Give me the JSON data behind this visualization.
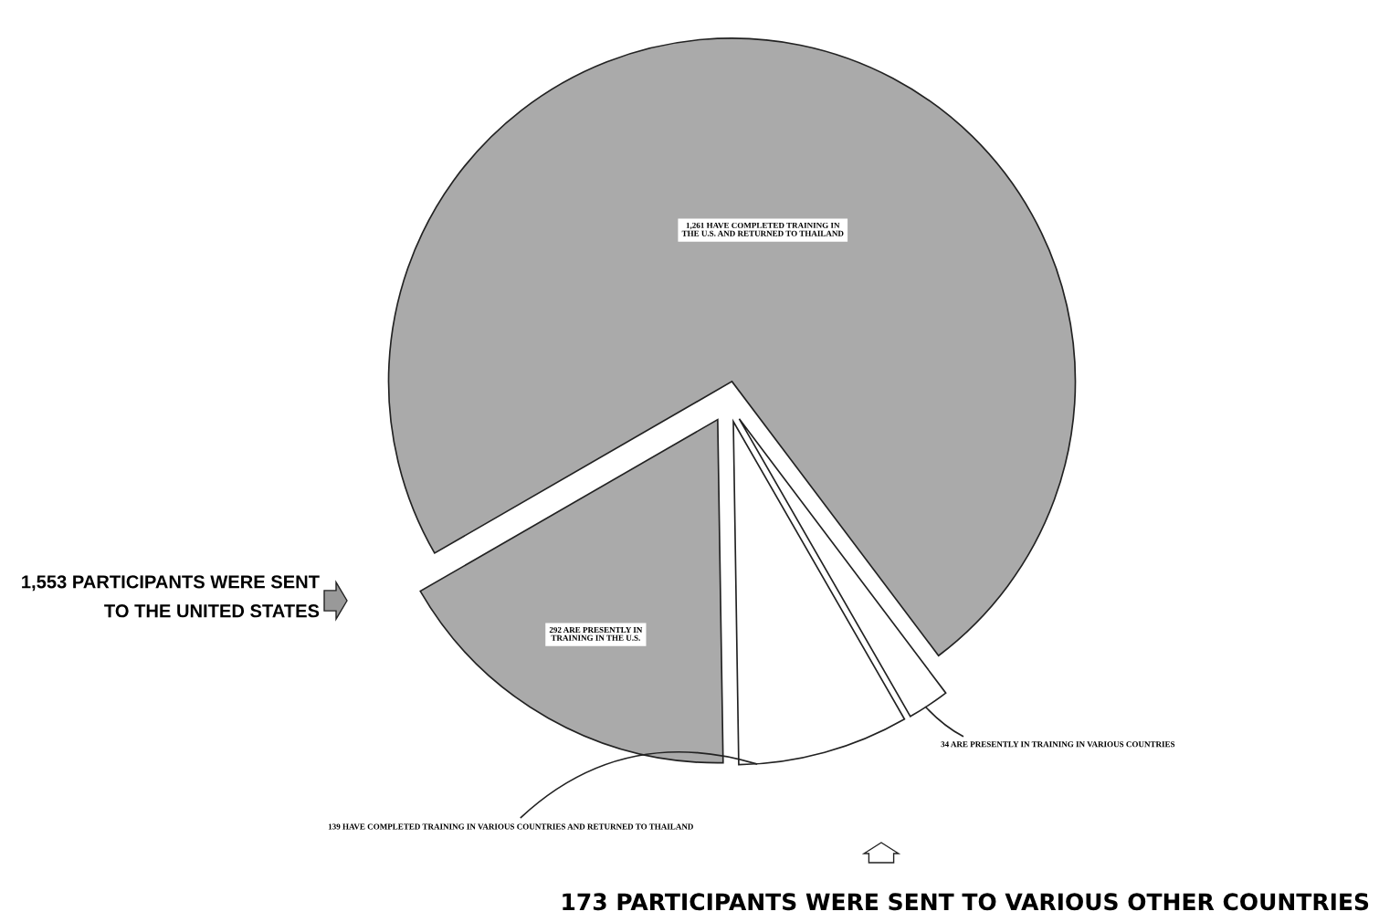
{
  "chart_data": {
    "type": "pie",
    "categories": [
      "1,261 HAVE COMPLETED TRAINING IN\nTHE U.S. AND RETURNED TO THAILAND",
      "34 ARE PRESENTLY IN TRAINING IN VARIOUS COUNTRIES",
      "139 HAVE COMPLETED TRAINING IN VARIOUS COUNTRIES AND RETURNED TO THAILAND",
      "292 ARE PRESENTLY IN\nTRAINING IN THE U.S."
    ],
    "values": [
      1261,
      34,
      139,
      292
    ],
    "colors": [
      "#aaaaaa",
      "#ffffff",
      "#ffffff",
      "#aaaaaa"
    ],
    "annotations": [
      "1,553 PARTICIPANTS WERE SENT\nTO THE UNITED STATES",
      "173 PARTICIPANTS WERE SENT TO VARIOUS OTHER COUNTRIES"
    ]
  }
}
